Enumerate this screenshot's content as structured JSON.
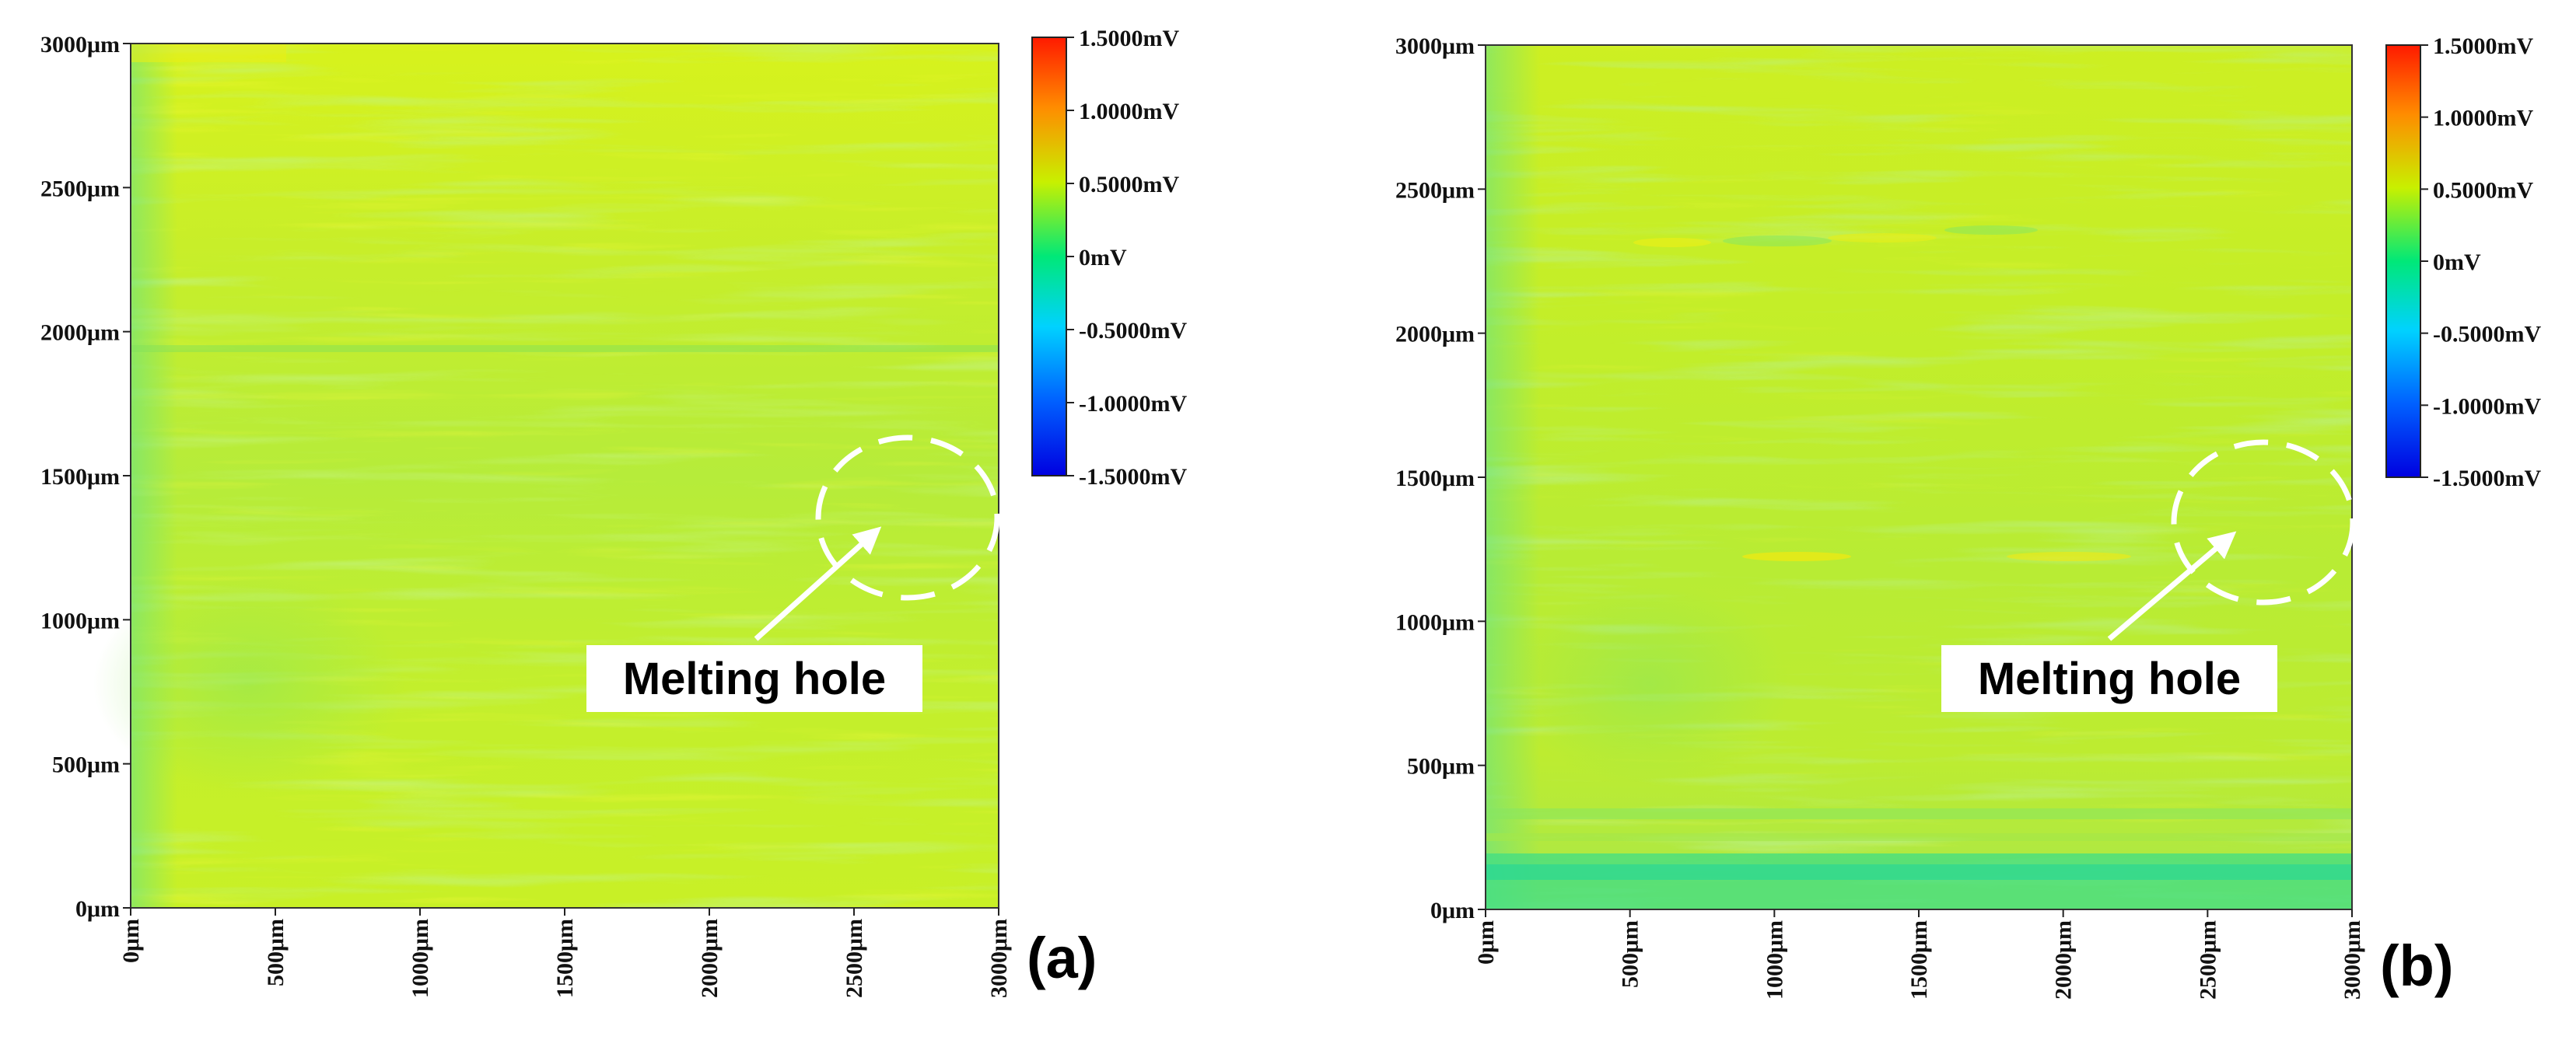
{
  "chart_data": [
    {
      "type": "heatmap",
      "panel_label": "(a)",
      "xlabel": "",
      "ylabel": "",
      "x_ticks": [
        "0μm",
        "500μm",
        "1000μm",
        "1500μm",
        "2000μm",
        "2500μm",
        "3000μm"
      ],
      "y_ticks": [
        "0μm",
        "500μm",
        "1000μm",
        "1500μm",
        "2000μm",
        "2500μm",
        "3000μm"
      ],
      "xlim": [
        0,
        3000
      ],
      "ylim": [
        0,
        3000
      ],
      "value_range_mV": [
        -1.5,
        1.5
      ],
      "typical_value_mV": 0.35,
      "colorbar": {
        "ticks": [
          "1.5000mV",
          "1.0000mV",
          "0.5000mV",
          "0mV",
          "-0.5000mV",
          "-1.0000mV",
          "-1.5000mV"
        ],
        "tick_values": [
          1.5,
          1.0,
          0.5,
          0,
          -0.5,
          -1.0,
          -1.5
        ],
        "colors": [
          "#ff2a00",
          "#ffa500",
          "#c8f000",
          "#00e878",
          "#00ccff",
          "#0050ff",
          "#0000e0"
        ]
      },
      "annotation": {
        "text": "Melting hole",
        "target_um": [
          2650,
          1350
        ]
      },
      "bands": [
        {
          "y": [
            0,
            3000
          ],
          "value": 0.38
        },
        {
          "y": [
            1930,
            1960
          ],
          "value": 0.18
        },
        {
          "y": [
            2600,
            3000
          ],
          "value": 0.4
        }
      ]
    },
    {
      "type": "heatmap",
      "panel_label": "(b)",
      "xlabel": "",
      "ylabel": "",
      "x_ticks": [
        "0μm",
        "500μm",
        "1000μm",
        "1500μm",
        "2000μm",
        "2500μm",
        "3000μm"
      ],
      "y_ticks": [
        "0μm",
        "500μm",
        "1000μm",
        "1500μm",
        "2000μm",
        "2500μm",
        "3000μm"
      ],
      "xlim": [
        0,
        3000
      ],
      "ylim": [
        0,
        3000
      ],
      "value_range_mV": [
        -1.5,
        1.5
      ],
      "typical_value_mV": 0.35,
      "colorbar": {
        "ticks": [
          "1.5000mV",
          "1.0000mV",
          "0.5000mV",
          "0mV",
          "-0.5000mV",
          "-1.0000mV",
          "-1.5000mV"
        ],
        "tick_values": [
          1.5,
          1.0,
          0.5,
          0,
          -0.5,
          -1.0,
          -1.5
        ],
        "colors": [
          "#ff2a00",
          "#ffa500",
          "#c8f000",
          "#00e878",
          "#00ccff",
          "#0050ff",
          "#0000e0"
        ]
      },
      "annotation": {
        "text": "Melting hole",
        "target_um": [
          2650,
          1350
        ]
      },
      "bands": [
        {
          "y": [
            0,
            3000
          ],
          "value": 0.38
        },
        {
          "y": [
            0,
            120
          ],
          "value": 0.15
        },
        {
          "y": [
            180,
            320
          ],
          "value": 0.25
        },
        {
          "y": [
            2300,
            2370
          ],
          "value": 0.3
        }
      ]
    }
  ]
}
